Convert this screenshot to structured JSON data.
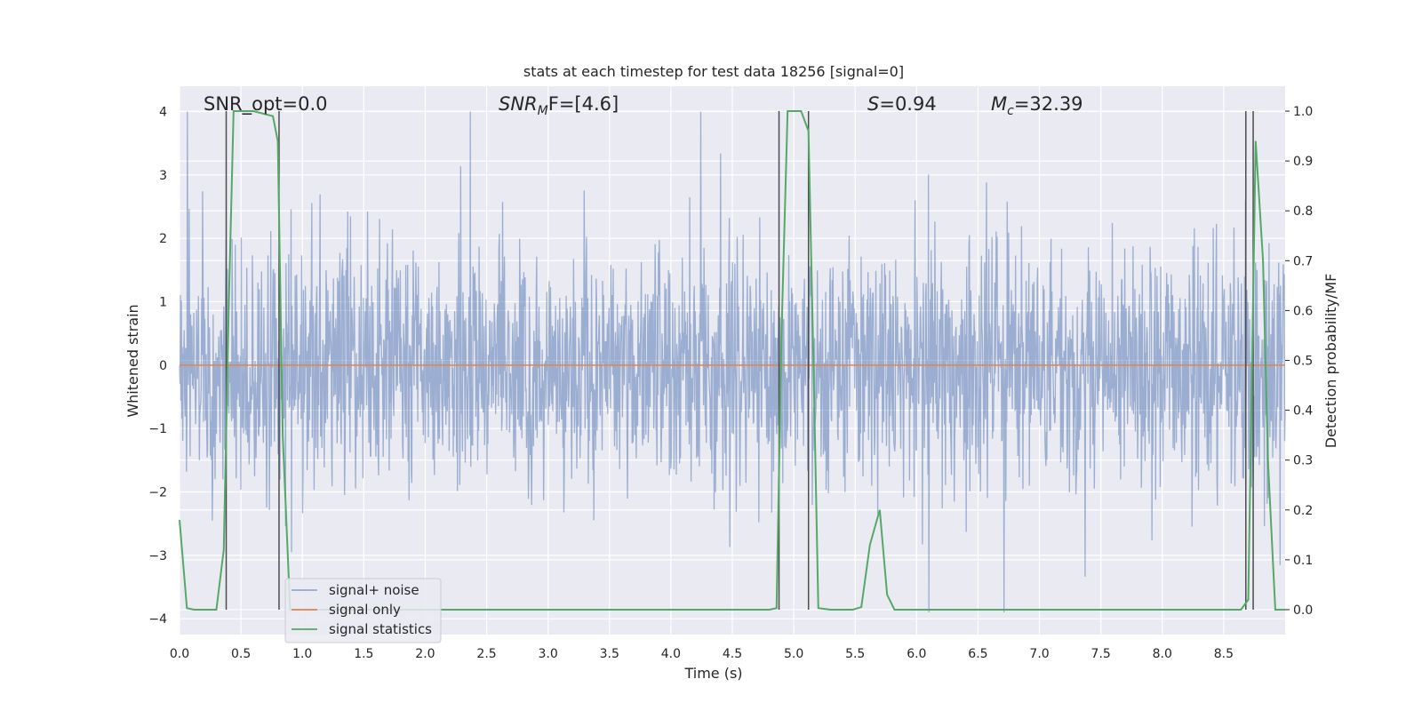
{
  "chart_data": {
    "type": "line",
    "title": "stats at each timestep for test data 18256 [signal=0]",
    "xlabel": "Time (s)",
    "ylabel_left": "Whitened strain",
    "ylabel_right": "Detection probability/MF",
    "xlim": [
      0.0,
      9.0
    ],
    "ylim_left": [
      -4.25,
      4.4
    ],
    "ylim_right": [
      -0.05,
      1.05
    ],
    "grid": true,
    "x_ticks": [
      "0.0",
      "0.5",
      "1.0",
      "1.5",
      "2.0",
      "2.5",
      "3.0",
      "3.5",
      "4.0",
      "4.5",
      "5.0",
      "5.5",
      "6.0",
      "6.5",
      "7.0",
      "7.5",
      "8.0",
      "8.5"
    ],
    "y_ticks_left": [
      "4",
      "3",
      "2",
      "1",
      "0",
      "−1",
      "−2",
      "−3",
      "−4"
    ],
    "y_ticks_right": [
      "1.0",
      "0.9",
      "0.8",
      "0.7",
      "0.6",
      "0.5",
      "0.4",
      "0.3",
      "0.2",
      "0.1",
      "0.0"
    ],
    "annotations": {
      "snr_opt": "SNR_opt=0.0",
      "snr_mf_prefix": "SNR",
      "snr_mf_sub": "M",
      "snr_mf_suffix": "F=[4.6]",
      "s_symbol": "S",
      "s_value": "=0.94",
      "mc_symbol": "M",
      "mc_sub": "c",
      "mc_value": "=32.39"
    },
    "legend": {
      "placement": "lower-left",
      "entries": [
        "signal+ noise",
        "signal only",
        "signal statistics"
      ]
    },
    "series": [
      {
        "name": "signal+ noise",
        "color": "#4c72b0",
        "note_visible": "dense noise, values roughly between -3.9 and 4.0, typical envelope -1.5..1.6",
        "seed": 18256,
        "range": [
          -3.9,
          4.0
        ]
      },
      {
        "name": "signal only",
        "color": "#dd8452",
        "x": [
          0.0,
          9.0
        ],
        "y": [
          0.0,
          0.0
        ]
      },
      {
        "name": "signal statistics",
        "color": "#55a868",
        "axis": "right",
        "x": [
          0.0,
          0.06,
          0.12,
          0.3,
          0.36,
          0.4,
          0.44,
          0.6,
          0.76,
          0.8,
          0.84,
          0.9,
          4.8,
          4.86,
          4.9,
          4.95,
          5.06,
          5.12,
          5.16,
          5.2,
          5.3,
          5.48,
          5.55,
          5.62,
          5.7,
          5.76,
          5.82,
          6.0,
          8.5,
          8.64,
          8.7,
          8.76,
          8.82,
          8.86,
          8.92,
          9.0
        ],
        "y": [
          0.18,
          0.003,
          0.0,
          0.0,
          0.12,
          0.6,
          1.0,
          1.0,
          0.99,
          0.94,
          0.35,
          0.0,
          0.0,
          0.003,
          0.55,
          1.0,
          1.0,
          0.96,
          0.5,
          0.003,
          0.0,
          0.0,
          0.005,
          0.13,
          0.2,
          0.03,
          0.0,
          0.0,
          0.0,
          0.0,
          0.02,
          0.94,
          0.7,
          0.3,
          0.0,
          0.0
        ]
      }
    ],
    "vertical_markers_x": [
      0.38,
      0.81,
      4.88,
      5.12,
      8.68,
      8.74
    ]
  },
  "colors": {
    "plot_background": "#eaeaf2",
    "grid": "#ffffff",
    "noise": "#4c72b0",
    "signal_only": "#dd8452",
    "statistics": "#55a868",
    "markers": "#4d4d4d"
  }
}
